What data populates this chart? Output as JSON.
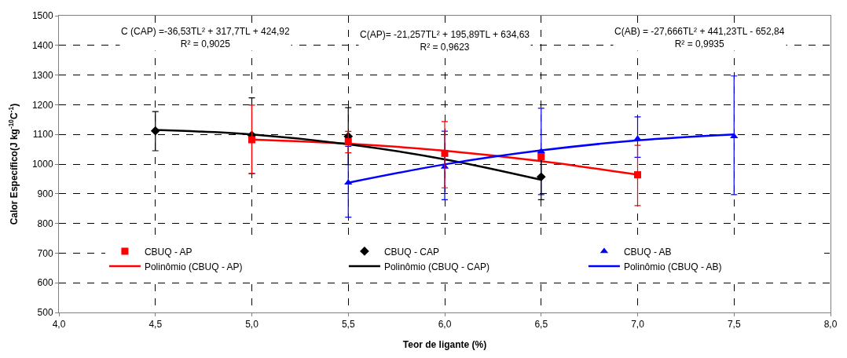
{
  "chart_data": {
    "type": "scatter",
    "xlabel": "Teor de ligante (%)",
    "ylabel": "Calor Específico(J kg$^{-10}$C$^{-1}$)",
    "xlim": [
      4.0,
      8.0
    ],
    "xticks": [
      {
        "value": 4.0,
        "label": "4,0"
      },
      {
        "value": 4.5,
        "label": "4,5"
      },
      {
        "value": 5.0,
        "label": "5,0"
      },
      {
        "value": 5.5,
        "label": "5,5"
      },
      {
        "value": 6.0,
        "label": "6,0"
      },
      {
        "value": 6.5,
        "label": "6,5"
      },
      {
        "value": 7.0,
        "label": "7,0"
      },
      {
        "value": 7.5,
        "label": "7,5"
      },
      {
        "value": 8.0,
        "label": "8,0"
      }
    ],
    "ylim": [
      500,
      1500
    ],
    "yticks": [
      500,
      600,
      700,
      800,
      900,
      1000,
      1100,
      1200,
      1300,
      1400,
      1500
    ],
    "grid": true,
    "legend": "bottom",
    "annotations": [
      "C (CAP) =-36,53TL² + 317,7TL + 424,92\nR² = 0,9025",
      "C(AP)= -21,257TL² + 195,89TL + 634,63\nR² = 0,9623",
      "C(AB) = -27,666TL² + 441,23TL - 652,84\nR² = 0,9935"
    ],
    "series": [
      {
        "name": "CBUQ - AP",
        "marker": "square",
        "color": "#ff0000",
        "x": [
          5.0,
          5.5,
          6.0,
          6.5,
          7.0
        ],
        "values": [
          1082,
          1076,
          1036,
          1025,
          964
        ],
        "errors": [
          [
            968,
            1199
          ],
          [
            1038,
            1110
          ],
          [
            920,
            1143
          ],
          null,
          [
            860,
            1063
          ]
        ]
      },
      {
        "name": "CBUQ - CAP",
        "marker": "diamond",
        "color": "#000000",
        "x": [
          4.5,
          5.0,
          5.5,
          6.5
        ],
        "values": [
          1112,
          1097,
          1093,
          957
        ],
        "errors": [
          [
            1045,
            1177
          ],
          [
            968,
            1223
          ],
          [
            998,
            1190
          ],
          [
            880,
            1034
          ]
        ]
      },
      {
        "name": "CBUQ - AB",
        "marker": "triangle",
        "color": "#0000ff",
        "x": [
          5.5,
          6.0,
          6.5,
          7.0,
          7.5
        ],
        "values": [
          937,
          991,
          1043,
          1085,
          1093
        ],
        "errors": [
          [
            821,
            1060
          ],
          [
            880,
            1111
          ],
          [
            897,
            1188
          ],
          [
            1023,
            1159
          ],
          [
            897,
            1297
          ]
        ]
      },
      {
        "name": "Polinômio (CBUQ - AP)",
        "type": "line",
        "marker": "none",
        "line_style": "solid",
        "color": "#ff0000",
        "x": [
          5.0,
          5.5,
          6.0,
          6.5,
          7.0
        ],
        "values": [
          1083,
          1069,
          1045,
          1010,
          964
        ]
      },
      {
        "name": "Polinômio (CBUQ - CAP)",
        "type": "line",
        "marker": "none",
        "line_style": "solid",
        "color": "#000000",
        "x": [
          4.5,
          5.0,
          5.5,
          6.0,
          6.5
        ],
        "values": [
          1115,
          1100,
          1067,
          1016,
          947
        ]
      },
      {
        "name": "Polinômio (CBUQ - AB)",
        "type": "line",
        "marker": "none",
        "line_style": "solid",
        "color": "#0000ff",
        "x": [
          5.5,
          6.0,
          6.5,
          7.0,
          7.5
        ],
        "values": [
          937,
          999,
          1046,
          1080,
          1100
        ]
      }
    ]
  }
}
